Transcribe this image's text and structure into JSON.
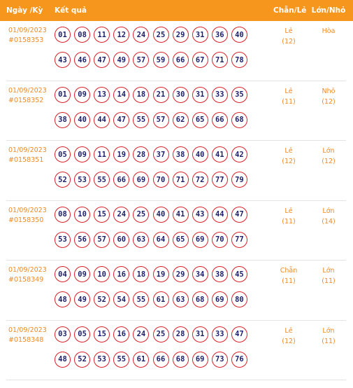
{
  "header": {
    "date_label": "Ngày /Kỳ",
    "result_label": "Kết quả",
    "odd_even_label": "Chẵn/Lẻ",
    "big_small_label": "Lớn/Nhỏ"
  },
  "draws": [
    {
      "date": "01/09/2023",
      "draw_id": "#0158353",
      "numbers": [
        "01",
        "08",
        "11",
        "12",
        "24",
        "25",
        "29",
        "31",
        "36",
        "40",
        "43",
        "46",
        "47",
        "49",
        "57",
        "59",
        "66",
        "67",
        "71",
        "78"
      ],
      "odd_even": "Lẻ",
      "odd_even_count": "(12)",
      "big_small": "Hòa",
      "big_small_count": ""
    },
    {
      "date": "01/09/2023",
      "draw_id": "#0158352",
      "numbers": [
        "01",
        "09",
        "13",
        "14",
        "18",
        "21",
        "30",
        "31",
        "33",
        "35",
        "38",
        "40",
        "44",
        "47",
        "55",
        "57",
        "62",
        "65",
        "66",
        "68"
      ],
      "odd_even": "Lẻ",
      "odd_even_count": "(11)",
      "big_small": "Nhỏ",
      "big_small_count": "(12)"
    },
    {
      "date": "01/09/2023",
      "draw_id": "#0158351",
      "numbers": [
        "05",
        "09",
        "11",
        "19",
        "28",
        "37",
        "38",
        "40",
        "41",
        "42",
        "52",
        "53",
        "55",
        "66",
        "69",
        "70",
        "71",
        "72",
        "77",
        "79"
      ],
      "odd_even": "Lẻ",
      "odd_even_count": "(12)",
      "big_small": "Lớn",
      "big_small_count": "(12)"
    },
    {
      "date": "01/09/2023",
      "draw_id": "#0158350",
      "numbers": [
        "08",
        "10",
        "15",
        "24",
        "25",
        "40",
        "41",
        "43",
        "44",
        "47",
        "53",
        "56",
        "57",
        "60",
        "63",
        "64",
        "65",
        "69",
        "70",
        "77"
      ],
      "odd_even": "Lẻ",
      "odd_even_count": "(11)",
      "big_small": "Lớn",
      "big_small_count": "(14)"
    },
    {
      "date": "01/09/2023",
      "draw_id": "#0158349",
      "numbers": [
        "04",
        "09",
        "10",
        "16",
        "18",
        "19",
        "29",
        "34",
        "38",
        "45",
        "48",
        "49",
        "52",
        "54",
        "55",
        "61",
        "63",
        "68",
        "69",
        "80"
      ],
      "odd_even": "Chẵn",
      "odd_even_count": "(11)",
      "big_small": "Lớn",
      "big_small_count": "(11)"
    },
    {
      "date": "01/09/2023",
      "draw_id": "#0158348",
      "numbers": [
        "03",
        "05",
        "15",
        "16",
        "24",
        "25",
        "28",
        "31",
        "33",
        "47",
        "48",
        "52",
        "53",
        "55",
        "61",
        "66",
        "68",
        "69",
        "73",
        "76"
      ],
      "odd_even": "Lẻ",
      "odd_even_count": "(12)",
      "big_small": "Lớn",
      "big_small_count": "(11)"
    }
  ]
}
